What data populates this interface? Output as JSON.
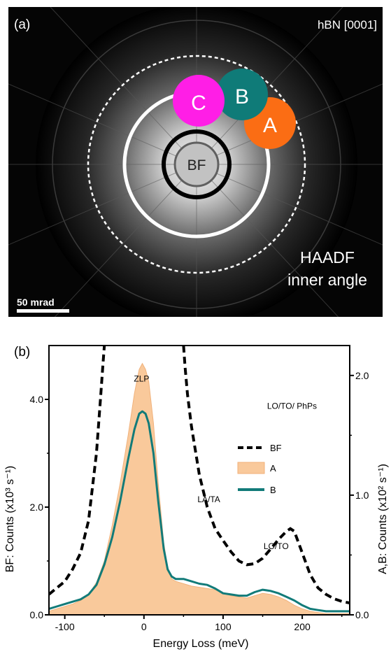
{
  "panel_a": {
    "label": "(a)",
    "orientation": "hBN [0001]",
    "regions": [
      {
        "id": "C",
        "color": "#ff1ee6"
      },
      {
        "id": "B",
        "color": "#0f7b78"
      },
      {
        "id": "A",
        "color": "#fb6d14"
      }
    ],
    "bf_label": "BF",
    "haadf_label_line1": "HAADF",
    "haadf_label_line2": "inner angle",
    "scalebar_label": "50 mrad"
  },
  "chart_data": {
    "type": "line",
    "panel_label": "(b)",
    "xlabel": "Energy Loss (meV)",
    "ylabel_left": "BF: Counts (x10³ s⁻¹)",
    "ylabel_right": "A,B: Counts  (x10² s⁻¹)",
    "xlim": [
      -120,
      260
    ],
    "ylim_left": [
      0,
      5.0
    ],
    "ylim_right": [
      0,
      2.25
    ],
    "xticks": [
      -100,
      0,
      100,
      200
    ],
    "yticks_left": [
      0.0,
      2.0,
      4.0
    ],
    "yticks_right": [
      0.0,
      1.0,
      2.0
    ],
    "grid": false,
    "legend_position": "right",
    "series": [
      {
        "name": "BF",
        "axis": "left",
        "style": "dashed",
        "color": "#000000",
        "x": [
          -120,
          -100,
          -90,
          -80,
          -70,
          -60,
          -55,
          -52,
          -50,
          50,
          52,
          55,
          60,
          70,
          80,
          90,
          100,
          110,
          120,
          130,
          140,
          150,
          160,
          170,
          180,
          185,
          190,
          200,
          210,
          220,
          230,
          240,
          250,
          260
        ],
        "y": [
          0.38,
          0.62,
          0.85,
          1.15,
          1.75,
          3.0,
          4.0,
          4.6,
          5.0,
          5.0,
          4.6,
          4.1,
          3.5,
          2.6,
          2.0,
          1.6,
          1.38,
          1.17,
          1.0,
          0.93,
          0.95,
          1.05,
          1.22,
          1.4,
          1.55,
          1.6,
          1.55,
          1.15,
          0.75,
          0.5,
          0.38,
          0.3,
          0.25,
          0.22
        ]
      },
      {
        "name": "A",
        "axis": "right",
        "style": "filled",
        "color": "#f9c99b",
        "x": [
          -120,
          -110,
          -100,
          -90,
          -80,
          -70,
          -60,
          -50,
          -40,
          -30,
          -20,
          -12,
          -6,
          -2,
          2,
          6,
          12,
          18,
          25,
          30,
          35,
          40,
          50,
          60,
          70,
          80,
          90,
          100,
          110,
          120,
          130,
          140,
          150,
          160,
          170,
          180,
          190,
          200,
          210,
          220,
          230,
          240,
          250,
          260
        ],
        "y": [
          0.03,
          0.05,
          0.07,
          0.09,
          0.12,
          0.17,
          0.27,
          0.45,
          0.75,
          1.1,
          1.5,
          1.85,
          2.05,
          2.1,
          2.05,
          1.95,
          1.6,
          1.1,
          0.6,
          0.4,
          0.3,
          0.28,
          0.26,
          0.24,
          0.23,
          0.22,
          0.21,
          0.18,
          0.16,
          0.15,
          0.14,
          0.16,
          0.18,
          0.17,
          0.15,
          0.12,
          0.08,
          0.05,
          0.03,
          0.02,
          0.01,
          0.01,
          0.01,
          0.01
        ]
      },
      {
        "name": "B",
        "axis": "right",
        "style": "solid",
        "color": "#127b79",
        "x": [
          -120,
          -110,
          -100,
          -90,
          -80,
          -70,
          -60,
          -50,
          -40,
          -30,
          -20,
          -12,
          -6,
          -2,
          2,
          6,
          12,
          18,
          25,
          30,
          35,
          40,
          50,
          60,
          70,
          80,
          90,
          100,
          110,
          120,
          130,
          140,
          150,
          160,
          170,
          180,
          190,
          200,
          210,
          220,
          230,
          240,
          250,
          260
        ],
        "y": [
          0.05,
          0.07,
          0.09,
          0.11,
          0.13,
          0.17,
          0.25,
          0.42,
          0.65,
          0.95,
          1.3,
          1.55,
          1.68,
          1.7,
          1.68,
          1.6,
          1.35,
          0.95,
          0.55,
          0.38,
          0.32,
          0.3,
          0.3,
          0.28,
          0.26,
          0.25,
          0.22,
          0.18,
          0.17,
          0.16,
          0.16,
          0.19,
          0.21,
          0.2,
          0.18,
          0.15,
          0.12,
          0.08,
          0.05,
          0.04,
          0.03,
          0.03,
          0.03,
          0.03
        ]
      }
    ],
    "annotations": [
      {
        "text": "ZLP",
        "x": -3,
        "y": 1.95
      },
      {
        "text": "LA/TA",
        "x": 82,
        "y": 0.94
      },
      {
        "text": "LO/TO",
        "x": 167,
        "y": 0.55
      },
      {
        "text": "LO/TO/ PhPs",
        "x": 187,
        "y": 1.72
      }
    ]
  }
}
